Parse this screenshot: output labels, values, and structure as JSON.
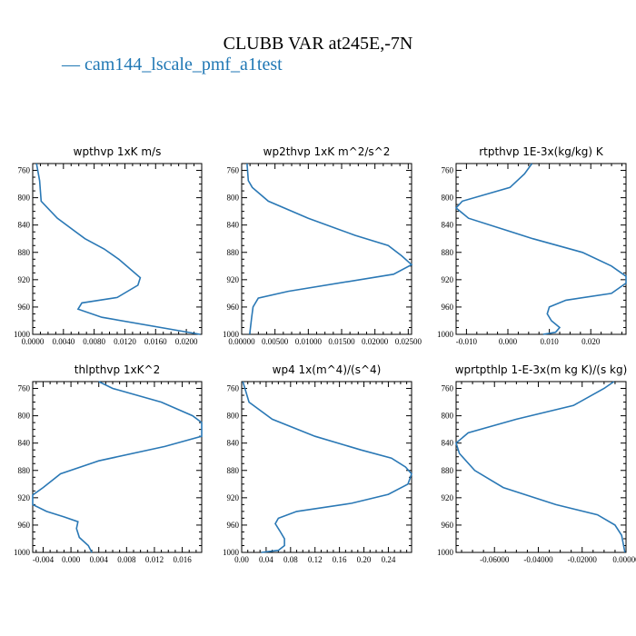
{
  "title": "CLUBB VAR at245E,-7N",
  "legend": {
    "label": "— cam144_lscale_pmf_a1test",
    "color": "#1f77b4"
  },
  "line_color": "#2a78b5",
  "chart_data": [
    {
      "type": "line",
      "title": "wpthvp  1xK m/s",
      "x_ticks": [
        "0.0000",
        "0.0040",
        "0.0080",
        "0.0120",
        "0.0160",
        "0.0200"
      ],
      "xlim": [
        0.0,
        0.022
      ],
      "y_ticks": [
        "760",
        "800",
        "840",
        "880",
        "920",
        "960",
        "1000"
      ],
      "ylim": [
        750,
        1000
      ],
      "y_inverted": true,
      "series": [
        {
          "x": [
            0.0005,
            0.0009,
            0.0011,
            0.0032,
            0.0068,
            0.0093,
            0.0112,
            0.014,
            0.0137,
            0.011,
            0.0064,
            0.0059,
            0.009,
            0.0218
          ],
          "y": [
            750,
            775,
            805,
            830,
            860,
            875,
            890,
            917,
            928,
            946,
            954,
            963,
            975,
            1000
          ]
        }
      ]
    },
    {
      "type": "line",
      "title": "wp2thvp  1xK m^2/s^2",
      "x_ticks": [
        "0.00000",
        "0.00500",
        "0.01000",
        "0.01500",
        "0.02000",
        "0.02500"
      ],
      "xlim": [
        0.0,
        0.0255
      ],
      "y_ticks": [
        "760",
        "800",
        "840",
        "880",
        "920",
        "960",
        "1000"
      ],
      "ylim": [
        750,
        1000
      ],
      "y_inverted": true,
      "series": [
        {
          "x": [
            0.0008,
            0.001,
            0.0016,
            0.004,
            0.01,
            0.017,
            0.022,
            0.024,
            0.0255,
            0.0228,
            0.007,
            0.0025,
            0.0017,
            0.0015,
            0.0012
          ],
          "y": [
            750,
            775,
            785,
            805,
            830,
            855,
            870,
            885,
            898,
            912,
            937,
            947,
            960,
            975,
            1000
          ]
        }
      ]
    },
    {
      "type": "line",
      "title": "rtpthvp  1E-3x(kg/kg) K",
      "x_ticks": [
        "-0.010",
        "0.000",
        "0.010",
        "0.020"
      ],
      "xlim": [
        -0.0125,
        0.0285
      ],
      "y_ticks": [
        "760",
        "800",
        "840",
        "880",
        "920",
        "960",
        "1000"
      ],
      "ylim": [
        750,
        1000
      ],
      "y_inverted": true,
      "series": [
        {
          "x": [
            0.0058,
            0.004,
            0.0005,
            -0.011,
            -0.0125,
            -0.0095,
            0.006,
            0.018,
            0.025,
            0.0285,
            0.0285,
            0.025,
            0.014,
            0.01,
            0.0095,
            0.0105,
            0.0125,
            0.0115,
            0.0085
          ],
          "y": [
            750,
            765,
            785,
            805,
            815,
            830,
            860,
            880,
            900,
            915,
            925,
            940,
            950,
            960,
            970,
            980,
            990,
            997,
            1000
          ]
        }
      ]
    },
    {
      "type": "line",
      "title": "thlpthvp  1xK^2",
      "x_ticks": [
        "-0.004",
        "0.000",
        "0.004",
        "0.008",
        "0.012",
        "0.016"
      ],
      "xlim": [
        -0.0055,
        0.0188
      ],
      "y_ticks": [
        "760",
        "800",
        "840",
        "880",
        "920",
        "960",
        "1000"
      ],
      "ylim": [
        750,
        1000
      ],
      "y_inverted": true,
      "series": [
        {
          "x": [
            0.004,
            0.006,
            0.013,
            0.0175,
            0.0188,
            0.0188,
            0.0135,
            0.004,
            -0.0015,
            -0.004,
            -0.0055,
            -0.0055,
            -0.0035,
            -0.001,
            0.001,
            0.0008,
            0.0012,
            0.0025,
            0.003
          ],
          "y": [
            750,
            760,
            780,
            800,
            810,
            830,
            845,
            866,
            885,
            905,
            916,
            930,
            940,
            948,
            955,
            965,
            978,
            990,
            1000
          ]
        }
      ]
    },
    {
      "type": "line",
      "title": "wp4  1x(m^4)/(s^4)",
      "x_ticks": [
        "0.00",
        "0.04",
        "0.08",
        "0.12",
        "0.16",
        "0.20",
        "0.24"
      ],
      "xlim": [
        0.0,
        0.278
      ],
      "y_ticks": [
        "760",
        "800",
        "840",
        "880",
        "920",
        "960",
        "1000"
      ],
      "ylim": [
        750,
        1000
      ],
      "y_inverted": true,
      "series": [
        {
          "x": [
            0.002,
            0.012,
            0.05,
            0.12,
            0.195,
            0.245,
            0.268,
            0.278,
            0.272,
            0.24,
            0.18,
            0.09,
            0.06,
            0.055,
            0.062,
            0.07,
            0.07,
            0.06,
            0.032
          ],
          "y": [
            750,
            780,
            805,
            830,
            850,
            862,
            875,
            885,
            900,
            915,
            928,
            940,
            950,
            958,
            968,
            980,
            990,
            997,
            1000
          ]
        }
      ]
    },
    {
      "type": "line",
      "title": "wprtpthlp  1-E-3x(m kg K)/(s kg)",
      "x_ticks": [
        "-0.06000",
        "-0.04000",
        "-0.02000",
        "0.00000"
      ],
      "xlim": [
        -0.0775,
        0.0
      ],
      "y_ticks": [
        "760",
        "800",
        "840",
        "880",
        "920",
        "960",
        "1000"
      ],
      "ylim": [
        750,
        1000
      ],
      "y_inverted": true,
      "series": [
        {
          "x": [
            -0.0055,
            -0.01,
            -0.024,
            -0.05,
            -0.072,
            -0.0775,
            -0.076,
            -0.069,
            -0.056,
            -0.032,
            -0.013,
            -0.005,
            -0.002,
            -0.0005
          ],
          "y": [
            750,
            760,
            785,
            805,
            825,
            840,
            855,
            880,
            905,
            930,
            945,
            960,
            975,
            1000
          ]
        }
      ]
    }
  ]
}
